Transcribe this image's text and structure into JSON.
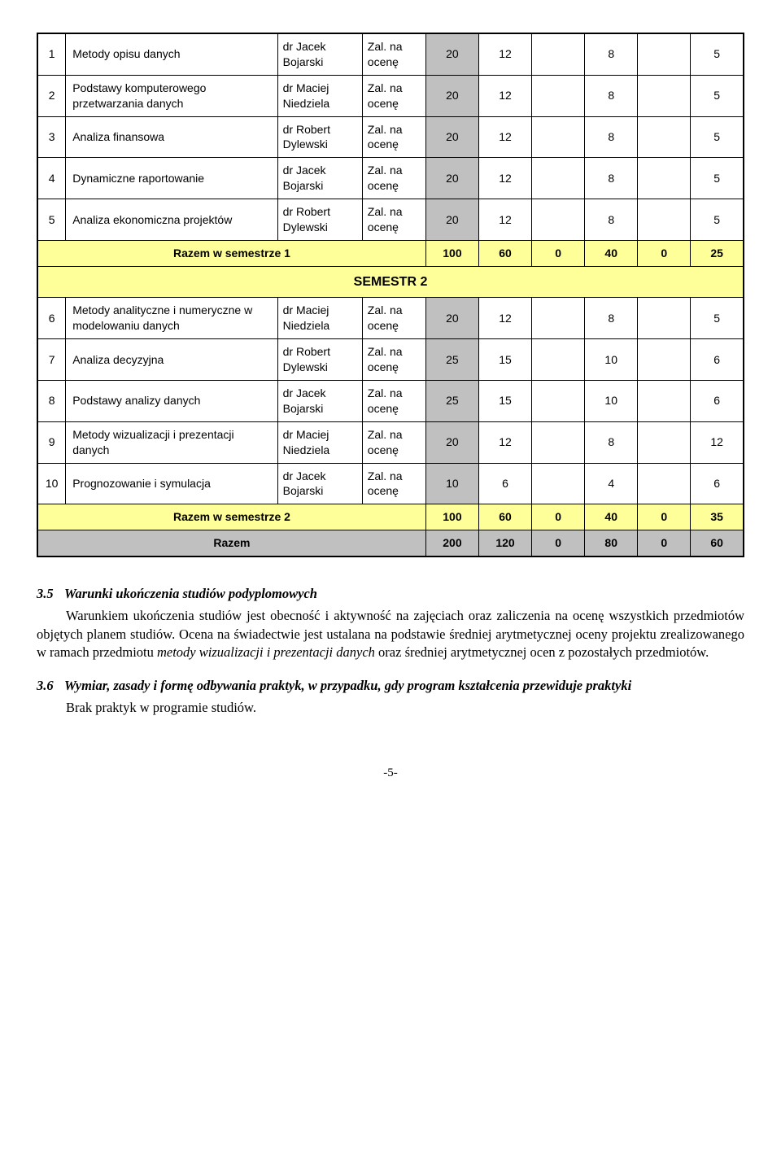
{
  "table": {
    "rows_top": [
      {
        "n": "1",
        "name": "Metody opisu danych",
        "inst": "dr Jacek Bojarski",
        "zal": "Zal. na ocenę",
        "v": [
          "20",
          "12",
          "",
          "8",
          "",
          "5"
        ]
      },
      {
        "n": "2",
        "name": "Podstawy komputerowego przetwarzania danych",
        "inst": "dr Maciej Niedziela",
        "zal": "Zal. na ocenę",
        "v": [
          "20",
          "12",
          "",
          "8",
          "",
          "5"
        ]
      },
      {
        "n": "3",
        "name": "Analiza finansowa",
        "inst": "dr Robert Dylewski",
        "zal": "Zal. na ocenę",
        "v": [
          "20",
          "12",
          "",
          "8",
          "",
          "5"
        ]
      },
      {
        "n": "4",
        "name": "Dynamiczne raportowanie",
        "inst": "dr Jacek Bojarski",
        "zal": "Zal. na ocenę",
        "v": [
          "20",
          "12",
          "",
          "8",
          "",
          "5"
        ]
      },
      {
        "n": "5",
        "name": "Analiza ekonomiczna projektów",
        "inst": "dr Robert Dylewski",
        "zal": "Zal. na ocenę",
        "v": [
          "20",
          "12",
          "",
          "8",
          "",
          "5"
        ]
      }
    ],
    "sum1": {
      "label": "Razem w semestrze 1",
      "v": [
        "100",
        "60",
        "0",
        "40",
        "0",
        "25"
      ]
    },
    "sem_header": "SEMESTR 2",
    "rows_bottom": [
      {
        "n": "6",
        "name": "Metody analityczne i numeryczne w modelowaniu danych",
        "inst": "dr Maciej Niedziela",
        "zal": "Zal. na ocenę",
        "v": [
          "20",
          "12",
          "",
          "8",
          "",
          "5"
        ]
      },
      {
        "n": "7",
        "name": "Analiza decyzyjna",
        "inst": "dr Robert Dylewski",
        "zal": "Zal. na ocenę",
        "v": [
          "25",
          "15",
          "",
          "10",
          "",
          "6"
        ]
      },
      {
        "n": "8",
        "name": "Podstawy analizy danych",
        "inst": "dr Jacek Bojarski",
        "zal": "Zal. na ocenę",
        "v": [
          "25",
          "15",
          "",
          "10",
          "",
          "6"
        ]
      },
      {
        "n": "9",
        "name": "Metody wizualizacji i prezentacji danych",
        "inst": "dr Maciej Niedziela",
        "zal": "Zal. na ocenę",
        "v": [
          "20",
          "12",
          "",
          "8",
          "",
          "12"
        ]
      },
      {
        "n": "10",
        "name": "Prognozowanie i symulacja",
        "inst": "dr Jacek Bojarski",
        "zal": "Zal. na ocenę",
        "v": [
          "10",
          "6",
          "",
          "4",
          "",
          "6"
        ]
      }
    ],
    "sum2": {
      "label": "Razem w semestrze 2",
      "v": [
        "100",
        "60",
        "0",
        "40",
        "0",
        "35"
      ]
    },
    "total": {
      "label": "Razem",
      "v": [
        "200",
        "120",
        "0",
        "80",
        "0",
        "60"
      ]
    }
  },
  "section35": {
    "num": "3.5",
    "title": "Warunki ukończenia studiów podyplomowych",
    "body_before_italic": "Warunkiem ukończenia studiów jest obecność i aktywność na zajęciach oraz zaliczenia na ocenę wszystkich przedmiotów objętych planem studiów. Ocena na świadectwie jest ustalana na podstawie średniej arytmetycznej oceny projektu zrealizowanego w ramach przedmiotu ",
    "italic": "metody wizualizacji i prezentacji danych",
    "body_after_italic": " oraz średniej arytmetycznej ocen z pozostałych przedmiotów."
  },
  "section36": {
    "num": "3.6",
    "title": "Wymiar, zasady i formę odbywania praktyk, w przypadku, gdy program kształcenia przewiduje praktyki",
    "body": "Brak praktyk w programie studiów."
  },
  "page_num": "-5-"
}
